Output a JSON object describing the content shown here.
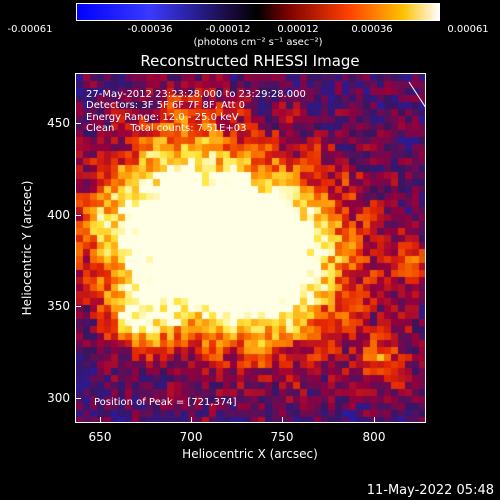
{
  "colorbar": {
    "ticks": [
      "-0.00061",
      "-0.00036",
      "-0.00012",
      "0.00012",
      "0.00036",
      "0.00061"
    ],
    "unit": "(photons cm⁻² s⁻¹ asec⁻²)"
  },
  "title": "Reconstructed RHESSI Image",
  "info": {
    "line1": "27-May-2012 23:23:28.000 to 23:29:28.000",
    "line2": "Detectors: 3F 5F 6F 7F 8F, Att 0",
    "line3": "Energy Range: 12.0 - 25.0 keV",
    "line4": "Clean     Total counts: 7.51E+03",
    "peak": "Position of Peak = [721,374]"
  },
  "axes": {
    "xlabel": "Heliocentric X (arcsec)",
    "ylabel": "Heliocentric Y (arcsec)",
    "xticks": [
      "650",
      "700",
      "750",
      "800"
    ],
    "yticks": [
      "300",
      "350",
      "400",
      "450"
    ],
    "xlim": [
      636,
      828
    ],
    "ylim": [
      285,
      477
    ]
  },
  "timestamp": "11-May-2022 05:48"
}
